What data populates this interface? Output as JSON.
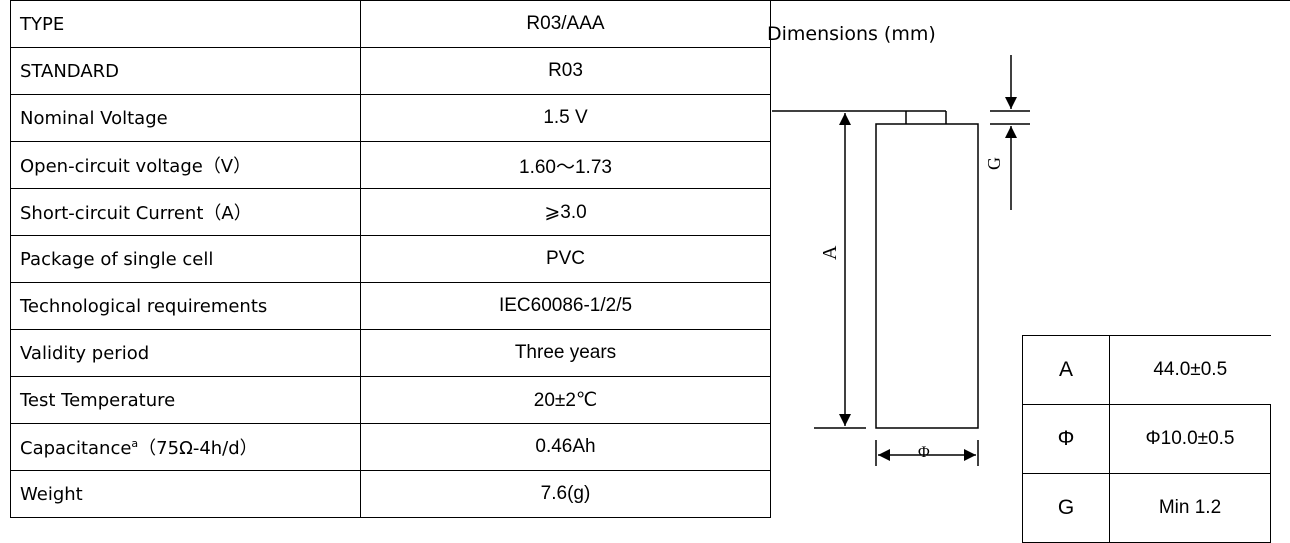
{
  "spec_table": [
    {
      "label": "TYPE",
      "value": "R03/AAA"
    },
    {
      "label": "STANDARD",
      "value": "R03"
    },
    {
      "label": "Nominal Voltage",
      "value": "1.5 V"
    },
    {
      "label": "Open-circuit voltage（V）",
      "value": "1.60～1.73"
    },
    {
      "label": "Short-circuit Current（A）",
      "value": "⩾3.0"
    },
    {
      "label": "Package of single cell",
      "value": "PVC"
    },
    {
      "label": "Technological requirements",
      "value": "IEC60086-1/2/5"
    },
    {
      "label": "Validity period",
      "value": "Three years"
    },
    {
      "label": "Test Temperature",
      "value": "20±2℃"
    },
    {
      "label": "Capacitance",
      "label_sup": "a",
      "label_suffix": "（75Ω-4h/d）",
      "value": "0.46Ah"
    },
    {
      "label": "Weight",
      "value": "7.6(g)"
    }
  ],
  "dimensions": {
    "title": "Dimensions (mm)",
    "drawing_labels": {
      "height": "A",
      "diameter": "Φ",
      "terminal": "G"
    },
    "table": [
      {
        "key": "A",
        "value": "44.0±0.5"
      },
      {
        "key": "Φ",
        "value": "Φ10.0±0.5"
      },
      {
        "key": "G",
        "value": "Min 1.2"
      }
    ]
  }
}
